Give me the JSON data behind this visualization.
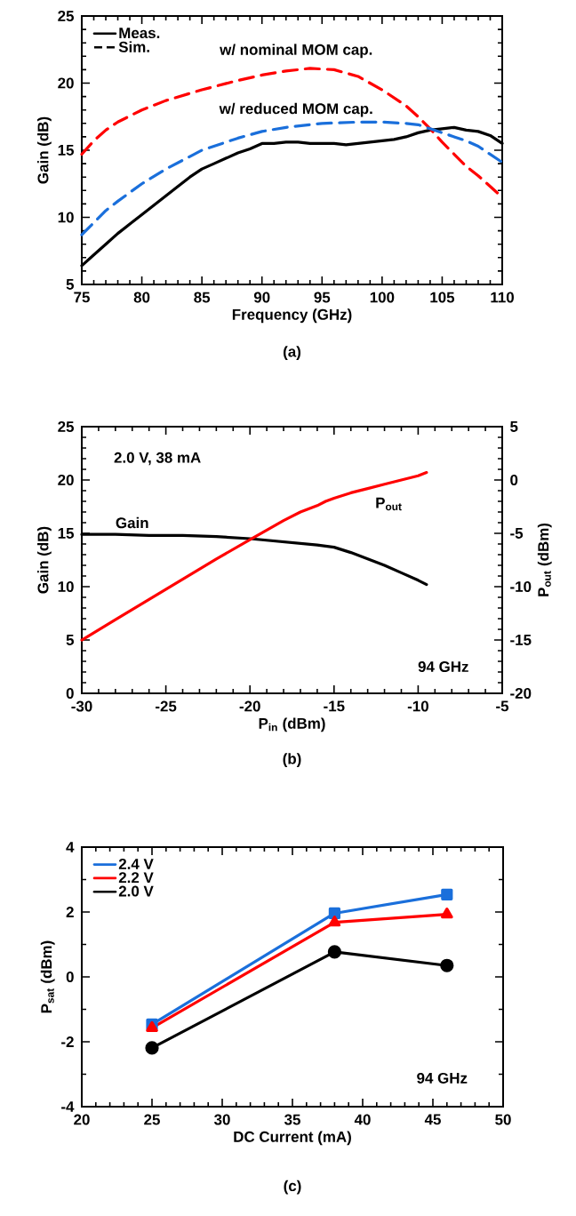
{
  "chart_data": [
    {
      "type": "line",
      "xlabel": "Frequency (GHz)",
      "ylabel": "Gain (dB)",
      "xlim": [
        75,
        110
      ],
      "ylim": [
        5,
        25
      ],
      "xticks": [
        75,
        80,
        85,
        90,
        95,
        100,
        105,
        110
      ],
      "yticks": [
        5,
        10,
        15,
        20,
        25
      ],
      "legend": "top left",
      "annotations": [
        "Sim.",
        "(a)"
      ],
      "series": [
        {
          "name": "Meas.",
          "color": "#000000",
          "line_style": "solid",
          "x": [
            75,
            76,
            77,
            78,
            79,
            80,
            81,
            82,
            83,
            84,
            85,
            86,
            87,
            88,
            89,
            90,
            91,
            92,
            93,
            94,
            95,
            96,
            97,
            98,
            99,
            100,
            101,
            102,
            103,
            104,
            105,
            106,
            107,
            108,
            109,
            110
          ],
          "values": [
            6.4,
            7.2,
            8.0,
            8.8,
            9.5,
            10.2,
            10.9,
            11.6,
            12.3,
            13.0,
            13.6,
            14.0,
            14.4,
            14.8,
            15.1,
            15.5,
            15.5,
            15.6,
            15.6,
            15.5,
            15.5,
            15.5,
            15.4,
            15.5,
            15.6,
            15.7,
            15.8,
            16.0,
            16.3,
            16.5,
            16.6,
            16.7,
            16.5,
            16.4,
            16.1,
            15.5
          ]
        },
        {
          "name": "w/ nominal MOM cap.",
          "color": "#ff0000",
          "line_style": "dashed",
          "x": [
            75,
            76,
            77,
            78,
            80,
            82,
            85,
            88,
            90,
            92,
            94,
            96,
            98,
            100,
            102,
            103,
            104,
            105,
            106,
            107,
            108,
            110
          ],
          "values": [
            14.7,
            15.7,
            16.5,
            17.1,
            18.0,
            18.7,
            19.5,
            20.2,
            20.6,
            20.9,
            21.1,
            21.0,
            20.5,
            19.5,
            18.3,
            17.5,
            16.6,
            15.6,
            14.7,
            13.8,
            13.1,
            11.5
          ]
        },
        {
          "name": "w/ reduced MOM cap.",
          "color": "#1a6fdb",
          "line_style": "dashed",
          "x": [
            75,
            76,
            77,
            78,
            80,
            82,
            85,
            88,
            90,
            92,
            95,
            98,
            100,
            102,
            103,
            104,
            105,
            106,
            107,
            108,
            110
          ],
          "values": [
            8.7,
            9.6,
            10.5,
            11.2,
            12.5,
            13.6,
            15.0,
            15.9,
            16.4,
            16.7,
            17.0,
            17.1,
            17.1,
            17.0,
            16.9,
            16.6,
            16.3,
            16.0,
            15.7,
            15.3,
            14.1
          ]
        }
      ]
    },
    {
      "type": "line",
      "xlabel": "P$_{in}$ (dBm)",
      "ylabel": "Gain (dB)",
      "y2label": "P$_{out}$ (dBm)",
      "xlim": [
        -30,
        -5
      ],
      "ylim": [
        0,
        25
      ],
      "y2lim": [
        -20,
        5
      ],
      "xticks": [
        -30,
        -25,
        -20,
        -15,
        -10,
        -5
      ],
      "yticks": [
        0,
        5,
        10,
        15,
        20,
        25
      ],
      "y2ticks": [
        -20,
        -15,
        -10,
        -5,
        0,
        5
      ],
      "annotations": [
        "2.0 V, 38 mA",
        "94 GHz",
        "(b)"
      ],
      "series": [
        {
          "name": "Gain",
          "color": "#000000",
          "x": [
            -30,
            -28,
            -26,
            -24,
            -22,
            -20,
            -18,
            -16,
            -15,
            -14,
            -13,
            -12,
            -11,
            -10,
            -9.5
          ],
          "values": [
            14.9,
            14.9,
            14.8,
            14.8,
            14.7,
            14.5,
            14.2,
            13.9,
            13.7,
            13.2,
            12.6,
            12.0,
            11.3,
            10.6,
            10.2
          ]
        },
        {
          "name": "P$_{out}$",
          "color": "#ff0000",
          "axis": "y2",
          "x": [
            -30,
            -28,
            -26,
            -24,
            -22,
            -20,
            -18,
            -17,
            -16,
            -15.5,
            -15,
            -14,
            -13,
            -12,
            -11,
            -10,
            -9.5
          ],
          "values": [
            -15.0,
            -13.1,
            -11.2,
            -9.3,
            -7.4,
            -5.6,
            -3.8,
            -3.0,
            -2.4,
            -2.0,
            -1.7,
            -1.2,
            -0.8,
            -0.4,
            0.0,
            0.4,
            0.7
          ]
        }
      ]
    },
    {
      "type": "line",
      "xlabel": "DC Current (mA)",
      "ylabel": "P$_{sat}$ (dBm)",
      "xlim": [
        20,
        50
      ],
      "ylim": [
        -4,
        4
      ],
      "xticks": [
        20,
        25,
        30,
        35,
        40,
        45,
        50
      ],
      "yticks": [
        -4,
        -2,
        0,
        2,
        4
      ],
      "legend": "top left",
      "annotations": [
        "94 GHz",
        "(c)"
      ],
      "series": [
        {
          "name": "2.4 V",
          "color": "#1a6fdb",
          "marker": "square",
          "x": [
            25,
            38,
            46
          ],
          "values": [
            -1.46,
            1.96,
            2.54
          ]
        },
        {
          "name": "2.2 V",
          "color": "#ff0000",
          "marker": "triangle",
          "x": [
            25,
            38,
            46
          ],
          "values": [
            -1.57,
            1.68,
            1.93
          ]
        },
        {
          "name": "2.0 V",
          "color": "#000000",
          "marker": "circle",
          "x": [
            25,
            38,
            46
          ],
          "values": [
            -2.19,
            0.77,
            0.35
          ]
        }
      ]
    }
  ]
}
